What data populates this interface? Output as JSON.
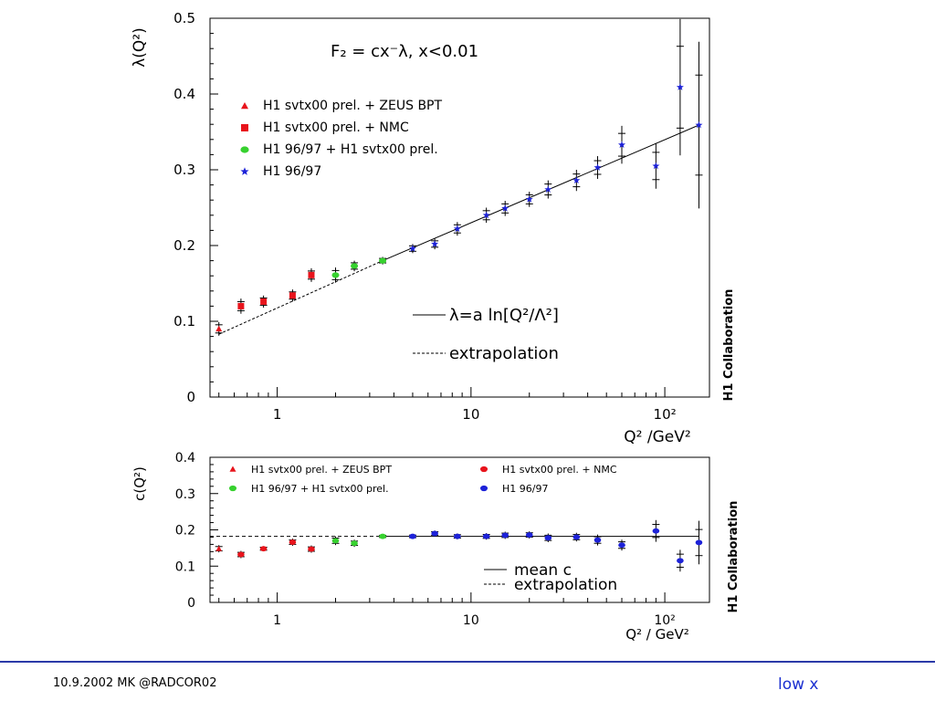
{
  "footer": {
    "left": "10.9.2002 MK @RADCOR02",
    "right": "low x"
  },
  "colors": {
    "red": "#e8141c",
    "green": "#37d12f",
    "blue": "#1d22d8",
    "accent_bar": "#2b3aa8",
    "footer_link": "#1a2fd0"
  },
  "chart_data": [
    {
      "type": "scatter",
      "title": "F₂ = cx⁻λ,  x<0.01",
      "xlabel": "Q² /GeV²",
      "ylabel": "λ(Q²)",
      "xscale": "log",
      "xlim": [
        0.45,
        170
      ],
      "ylim": [
        0,
        0.5
      ],
      "xticks": [
        {
          "v": 1,
          "label": "1"
        },
        {
          "v": 10,
          "label": "10"
        },
        {
          "v": 100,
          "label": "10²"
        }
      ],
      "yticks": [
        {
          "v": 0,
          "label": "0"
        },
        {
          "v": 0.1,
          "label": "0.1"
        },
        {
          "v": 0.2,
          "label": "0.2"
        },
        {
          "v": 0.3,
          "label": "0.3"
        },
        {
          "v": 0.4,
          "label": "0.4"
        },
        {
          "v": 0.5,
          "label": "0.5"
        }
      ],
      "watermark": "H1 Collaboration",
      "legend_position": "top-left",
      "series": [
        {
          "name": "H1 svtx00 prel. + ZEUS BPT",
          "marker": "triangle",
          "color": "#e8141c",
          "points": [
            {
              "x": 0.5,
              "y": 0.09,
              "err": 0.009
            }
          ]
        },
        {
          "name": "H1 svtx00 prel. + NMC",
          "marker": "square",
          "color": "#e8141c",
          "points": [
            {
              "x": 0.65,
              "y": 0.12,
              "err": 0.01
            },
            {
              "x": 0.85,
              "y": 0.126,
              "err": 0.008
            },
            {
              "x": 1.2,
              "y": 0.134,
              "err": 0.008
            },
            {
              "x": 1.5,
              "y": 0.161,
              "err": 0.009
            }
          ]
        },
        {
          "name": "H1 96/97 + H1 svtx00 prel.",
          "marker": "circle",
          "color": "#37d12f",
          "points": [
            {
              "x": 2.0,
              "y": 0.161,
              "err": 0.01
            },
            {
              "x": 2.5,
              "y": 0.173,
              "err": 0.007
            },
            {
              "x": 3.5,
              "y": 0.18,
              "err": 0.005
            }
          ]
        },
        {
          "name": "H1 96/97",
          "marker": "star",
          "color": "#1d22d8",
          "points": [
            {
              "x": 5,
              "y": 0.196,
              "err": 0.006
            },
            {
              "x": 6.5,
              "y": 0.202,
              "err": 0.007
            },
            {
              "x": 8.5,
              "y": 0.222,
              "err": 0.009
            },
            {
              "x": 12,
              "y": 0.24,
              "err": 0.01
            },
            {
              "x": 15,
              "y": 0.249,
              "err": 0.01
            },
            {
              "x": 20,
              "y": 0.261,
              "err": 0.01
            },
            {
              "x": 25,
              "y": 0.274,
              "err": 0.012
            },
            {
              "x": 35,
              "y": 0.286,
              "err": 0.014
            },
            {
              "x": 45,
              "y": 0.303,
              "err": 0.015
            },
            {
              "x": 60,
              "y": 0.333,
              "err": 0.025
            },
            {
              "x": 90,
              "y": 0.305,
              "err": 0.03
            },
            {
              "x": 120,
              "y": 0.409,
              "err": 0.09
            },
            {
              "x": 150,
              "y": 0.359,
              "err": 0.11
            }
          ]
        }
      ],
      "fit_line": {
        "label": "λ=a ln[Q²/Λ²]",
        "from": {
          "x": 3.5,
          "y": 0.18
        },
        "to": {
          "x": 150,
          "y": 0.359
        }
      },
      "extrapolation": {
        "label": "extrapolation",
        "from": {
          "x": 0.5,
          "y": 0.083
        },
        "to": {
          "x": 3.5,
          "y": 0.18
        }
      }
    },
    {
      "type": "scatter",
      "xlabel": "Q² / GeV²",
      "ylabel": "c(Q²)",
      "xscale": "log",
      "xlim": [
        0.45,
        170
      ],
      "ylim": [
        0,
        0.4
      ],
      "xticks": [
        {
          "v": 1,
          "label": "1"
        },
        {
          "v": 10,
          "label": "10"
        },
        {
          "v": 100,
          "label": "10²"
        }
      ],
      "yticks": [
        {
          "v": 0,
          "label": "0"
        },
        {
          "v": 0.1,
          "label": "0.1"
        },
        {
          "v": 0.2,
          "label": "0.2"
        },
        {
          "v": 0.3,
          "label": "0.3"
        },
        {
          "v": 0.4,
          "label": "0.4"
        }
      ],
      "watermark": "H1 Collaboration",
      "legend_position": "top",
      "series": [
        {
          "name": "H1 svtx00 prel. + ZEUS BPT",
          "marker": "triangle",
          "color": "#e8141c",
          "points": [
            {
              "x": 0.5,
              "y": 0.148,
              "err": 0.01
            }
          ]
        },
        {
          "name": "H1 svtx00 prel. + NMC",
          "marker": "circle",
          "color": "#e8141c",
          "points": [
            {
              "x": 0.65,
              "y": 0.132,
              "err": 0.01
            },
            {
              "x": 0.85,
              "y": 0.148,
              "err": 0.007
            },
            {
              "x": 1.2,
              "y": 0.166,
              "err": 0.01
            },
            {
              "x": 1.5,
              "y": 0.147,
              "err": 0.01
            }
          ]
        },
        {
          "name": "H1 96/97 + H1 svtx00 prel.",
          "marker": "circle",
          "color": "#37d12f",
          "points": [
            {
              "x": 2.0,
              "y": 0.17,
              "err": 0.012
            },
            {
              "x": 2.5,
              "y": 0.163,
              "err": 0.01
            },
            {
              "x": 3.5,
              "y": 0.182,
              "err": 0.005
            }
          ]
        },
        {
          "name": "H1 96/97",
          "marker": "circle",
          "color": "#1d22d8",
          "points": [
            {
              "x": 5,
              "y": 0.182,
              "err": 0.006
            },
            {
              "x": 6.5,
              "y": 0.19,
              "err": 0.008
            },
            {
              "x": 8.5,
              "y": 0.182,
              "err": 0.008
            },
            {
              "x": 12,
              "y": 0.182,
              "err": 0.009
            },
            {
              "x": 15,
              "y": 0.185,
              "err": 0.01
            },
            {
              "x": 20,
              "y": 0.186,
              "err": 0.01
            },
            {
              "x": 25,
              "y": 0.178,
              "err": 0.012
            },
            {
              "x": 35,
              "y": 0.18,
              "err": 0.012
            },
            {
              "x": 45,
              "y": 0.172,
              "err": 0.015
            },
            {
              "x": 60,
              "y": 0.158,
              "err": 0.015
            },
            {
              "x": 90,
              "y": 0.197,
              "err": 0.03
            },
            {
              "x": 120,
              "y": 0.115,
              "err": 0.03
            },
            {
              "x": 150,
              "y": 0.165,
              "err": 0.06
            }
          ]
        }
      ],
      "mean_line": {
        "label": "mean c",
        "value": 0.182,
        "from_x": 3.5,
        "to_x": 150
      },
      "extrapolation": {
        "label": "extrapolation",
        "value": 0.182,
        "from_x": 0.45,
        "to_x": 3.5
      }
    }
  ]
}
